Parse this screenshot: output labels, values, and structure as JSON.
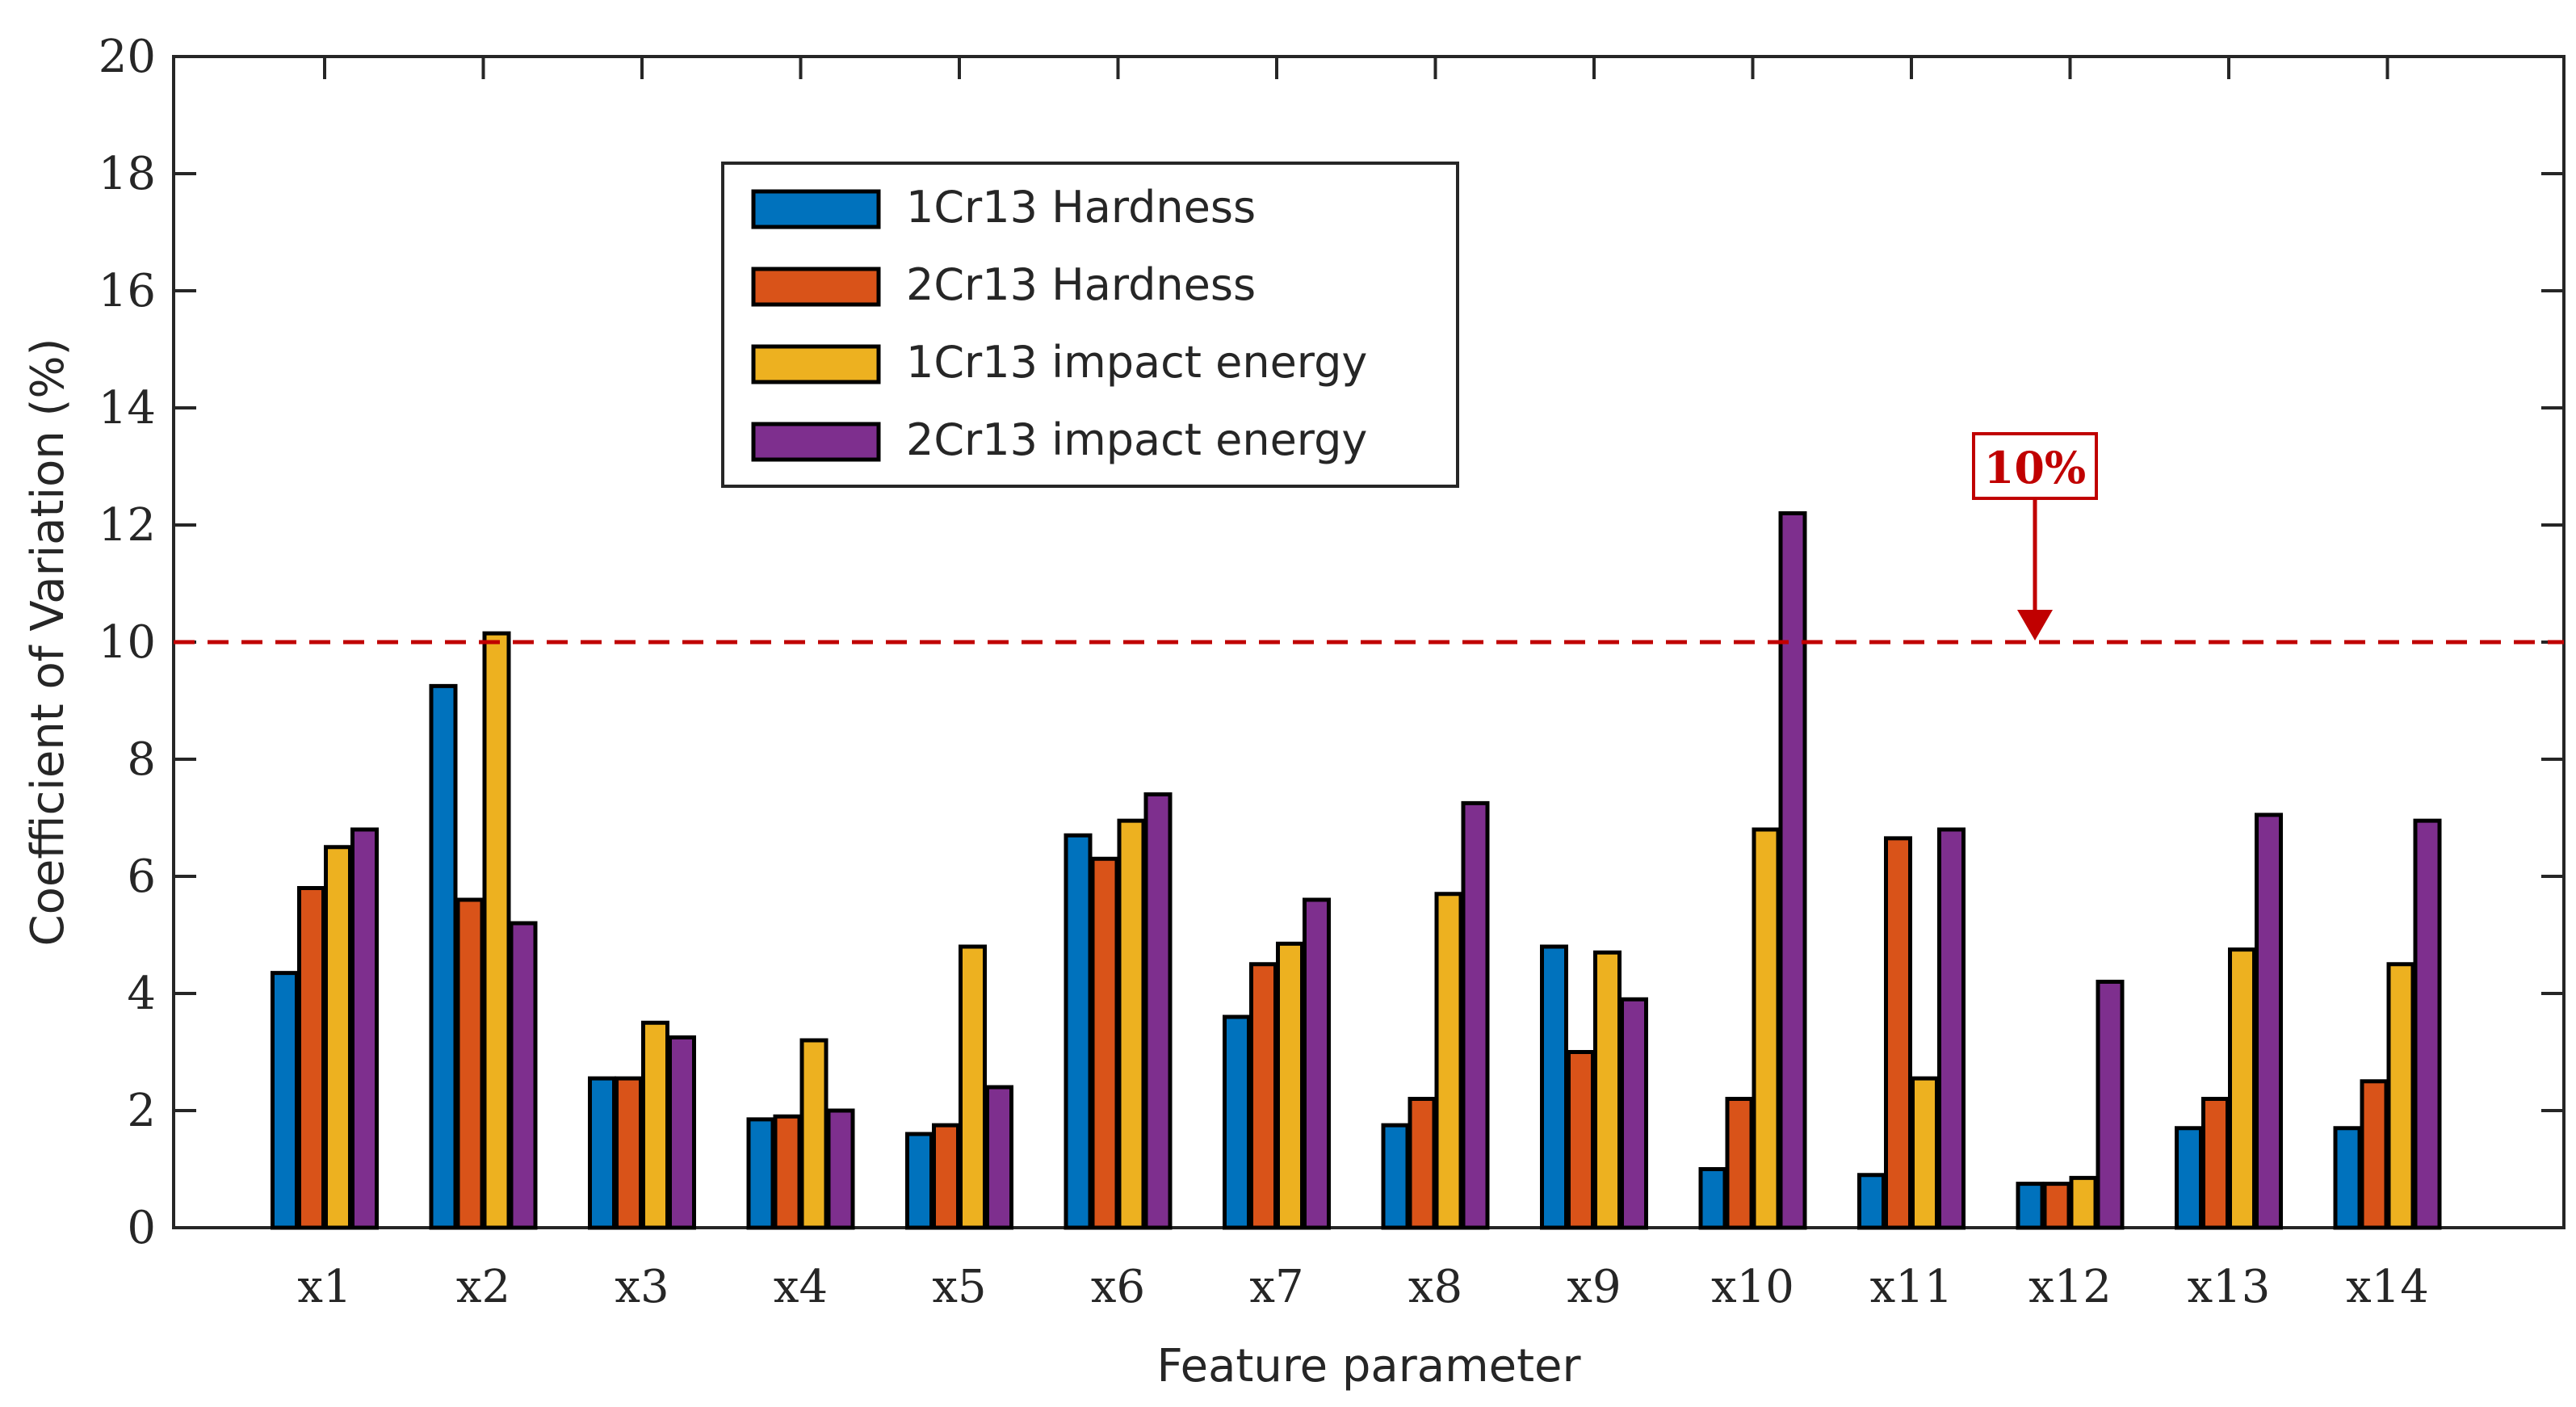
{
  "chart_data": {
    "type": "bar",
    "title": "",
    "xlabel": "Feature parameter",
    "ylabel": "Coefficient of Variation (%)",
    "ylim": [
      0,
      20
    ],
    "yticks": [
      0,
      2,
      4,
      6,
      8,
      10,
      12,
      14,
      16,
      18,
      20
    ],
    "categories": [
      "x1",
      "x2",
      "x3",
      "x4",
      "x5",
      "x6",
      "x7",
      "x8",
      "x9",
      "x10",
      "x11",
      "x12",
      "x13",
      "x14"
    ],
    "series": [
      {
        "name": "1Cr13 Hardness",
        "color": "#0072BD",
        "values": [
          4.35,
          9.25,
          2.55,
          1.85,
          1.6,
          6.7,
          3.6,
          1.75,
          4.8,
          1.0,
          0.9,
          0.75,
          1.7,
          1.7
        ]
      },
      {
        "name": "2Cr13 Hardness",
        "color": "#D95319",
        "values": [
          5.8,
          5.6,
          2.55,
          1.9,
          1.75,
          6.3,
          4.5,
          2.2,
          3.0,
          2.2,
          6.65,
          0.75,
          2.2,
          2.5
        ]
      },
      {
        "name": "1Cr13 impact energy",
        "color": "#EDB120",
        "values": [
          6.5,
          10.15,
          3.5,
          3.2,
          4.8,
          6.95,
          4.85,
          5.7,
          4.7,
          6.8,
          2.55,
          0.85,
          4.75,
          4.5
        ]
      },
      {
        "name": "2Cr13 impact energy",
        "color": "#7E2F8E",
        "values": [
          6.8,
          5.2,
          3.25,
          2.0,
          2.4,
          7.4,
          5.6,
          7.25,
          3.9,
          12.2,
          6.8,
          4.2,
          7.05,
          6.95
        ]
      }
    ],
    "threshold": {
      "value": 10,
      "label": "10%",
      "color": "#c00000",
      "style": "dashed"
    },
    "grid": false,
    "legend_position": "top-left"
  }
}
